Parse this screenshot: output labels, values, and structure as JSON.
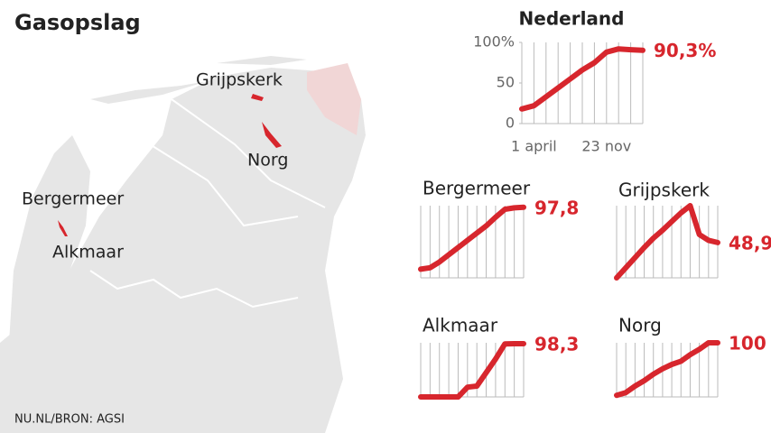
{
  "title": "Gasopslag",
  "source": "NU.NL/BRON: AGSI",
  "map_labels": [
    "Grijpskerk",
    "Norg",
    "Bergermeer",
    "Alkmaar"
  ],
  "chart_data": [
    {
      "type": "line",
      "title": "Nederland",
      "color": "#d7262d",
      "grid": "x",
      "x": [
        null,
        "1 april",
        null,
        null,
        null,
        null,
        null,
        "23 nov",
        null,
        null,
        null
      ],
      "values": [
        18,
        22,
        33,
        44,
        55,
        66,
        75,
        88,
        92,
        91,
        90.3
      ],
      "value_labels": [
        null,
        null,
        null,
        null,
        null,
        null,
        null,
        null,
        null,
        null,
        "90,3%"
      ],
      "ylim": [
        0,
        100
      ],
      "yticks": [
        {
          "value": 100,
          "label": "100%"
        },
        50,
        0
      ]
    },
    {
      "type": "line",
      "title": "Bergermeer",
      "color": "#d7262d",
      "grid": "x",
      "x": [
        null,
        null,
        null,
        null,
        null,
        null,
        null,
        null,
        null,
        null,
        null,
        null
      ],
      "values": [
        12,
        14,
        22,
        32,
        42,
        52,
        62,
        72,
        84,
        95,
        97,
        97.8
      ],
      "value_labels": [
        null,
        null,
        null,
        null,
        null,
        null,
        null,
        null,
        null,
        null,
        null,
        "97,8"
      ],
      "ylim": [
        0,
        100
      ]
    },
    {
      "type": "line",
      "title": "Grijpskerk",
      "color": "#d7262d",
      "grid": "x",
      "x": [
        null,
        null,
        null,
        null,
        null,
        null,
        null,
        null,
        null,
        null,
        null,
        null
      ],
      "values": [
        0,
        14,
        28,
        42,
        55,
        66,
        78,
        90,
        100,
        60,
        52,
        48.9
      ],
      "value_labels": [
        null,
        null,
        null,
        null,
        null,
        null,
        null,
        null,
        null,
        null,
        null,
        "48,9"
      ],
      "ylim": [
        0,
        100
      ]
    },
    {
      "type": "line",
      "title": "Alkmaar",
      "color": "#d7262d",
      "grid": "x",
      "x": [
        null,
        null,
        null,
        null,
        null,
        null,
        null,
        null,
        null,
        null,
        null,
        null
      ],
      "values": [
        0,
        0,
        0,
        0,
        0,
        18,
        20,
        45,
        70,
        98,
        98.3,
        98.3
      ],
      "value_labels": [
        null,
        null,
        null,
        null,
        null,
        null,
        null,
        null,
        null,
        null,
        null,
        "98,3"
      ],
      "ylim": [
        0,
        100
      ]
    },
    {
      "type": "line",
      "title": "Norg",
      "color": "#d7262d",
      "grid": "x",
      "x": [
        null,
        null,
        null,
        null,
        null,
        null,
        null,
        null,
        null,
        null,
        null,
        null
      ],
      "values": [
        3,
        8,
        20,
        30,
        42,
        52,
        60,
        66,
        78,
        88,
        100,
        100
      ],
      "ylim": [
        0,
        100
      ]
    }
  ]
}
